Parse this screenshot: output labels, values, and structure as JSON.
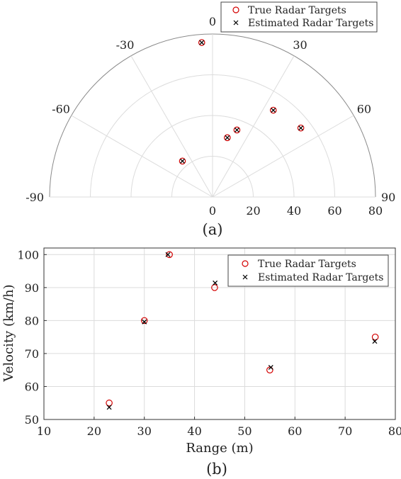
{
  "figure": {
    "panel_a_label": "(a)",
    "panel_b_label": "(b)"
  },
  "colors": {
    "true_marker": "#d40000",
    "estimated_marker": "#000000",
    "grid": "#dcdcdc",
    "axis": "#333333"
  },
  "chart_data": [
    {
      "type": "scatter",
      "subtype": "polar",
      "title": "",
      "theta_ticks": [
        "-90",
        "-60",
        "-30",
        "0",
        "30",
        "60",
        "90"
      ],
      "r_ticks": [
        "0",
        "20",
        "40",
        "60",
        "80"
      ],
      "r_max": 80,
      "theta_range_deg": [
        -90,
        90
      ],
      "grid": true,
      "legend": {
        "position": "top-right",
        "entries": [
          "True Radar Targets",
          "Estimated Radar Targets"
        ]
      },
      "series": [
        {
          "name": "True Radar Targets",
          "marker": "circle",
          "points": [
            {
              "theta": -4,
              "r": 76
            },
            {
              "theta": 35,
              "r": 52
            },
            {
              "theta": 52,
              "r": 55
            },
            {
              "theta": 20,
              "r": 35
            },
            {
              "theta": 14,
              "r": 30
            },
            {
              "theta": -40,
              "r": 23
            }
          ]
        },
        {
          "name": "Estimated Radar Targets",
          "marker": "x",
          "points": [
            {
              "theta": -4,
              "r": 76
            },
            {
              "theta": 35,
              "r": 52
            },
            {
              "theta": 52,
              "r": 55
            },
            {
              "theta": 20,
              "r": 35
            },
            {
              "theta": 14,
              "r": 30
            },
            {
              "theta": -40,
              "r": 23
            }
          ]
        }
      ]
    },
    {
      "type": "scatter",
      "title": "",
      "xlabel": "Range (m)",
      "ylabel": "Velocity (km/h)",
      "xlim": [
        10,
        80
      ],
      "ylim": [
        50,
        102
      ],
      "x_ticks": [
        "10",
        "20",
        "30",
        "40",
        "50",
        "60",
        "70",
        "80"
      ],
      "y_ticks": [
        "50",
        "60",
        "70",
        "80",
        "90",
        "100"
      ],
      "grid": true,
      "legend": {
        "position": "top-right",
        "entries": [
          "True Radar Targets",
          "Estimated Radar Targets"
        ]
      },
      "series": [
        {
          "name": "True Radar Targets",
          "marker": "circle",
          "x": [
            23,
            30,
            35,
            44,
            55,
            76
          ],
          "y": [
            55,
            80,
            100,
            90,
            65,
            75
          ]
        },
        {
          "name": "Estimated Radar Targets",
          "marker": "x",
          "x": [
            23,
            30,
            34.7,
            44.1,
            55.2,
            75.9
          ],
          "y": [
            53.7,
            79.6,
            100,
            91.4,
            65.8,
            73.7
          ]
        }
      ]
    }
  ]
}
